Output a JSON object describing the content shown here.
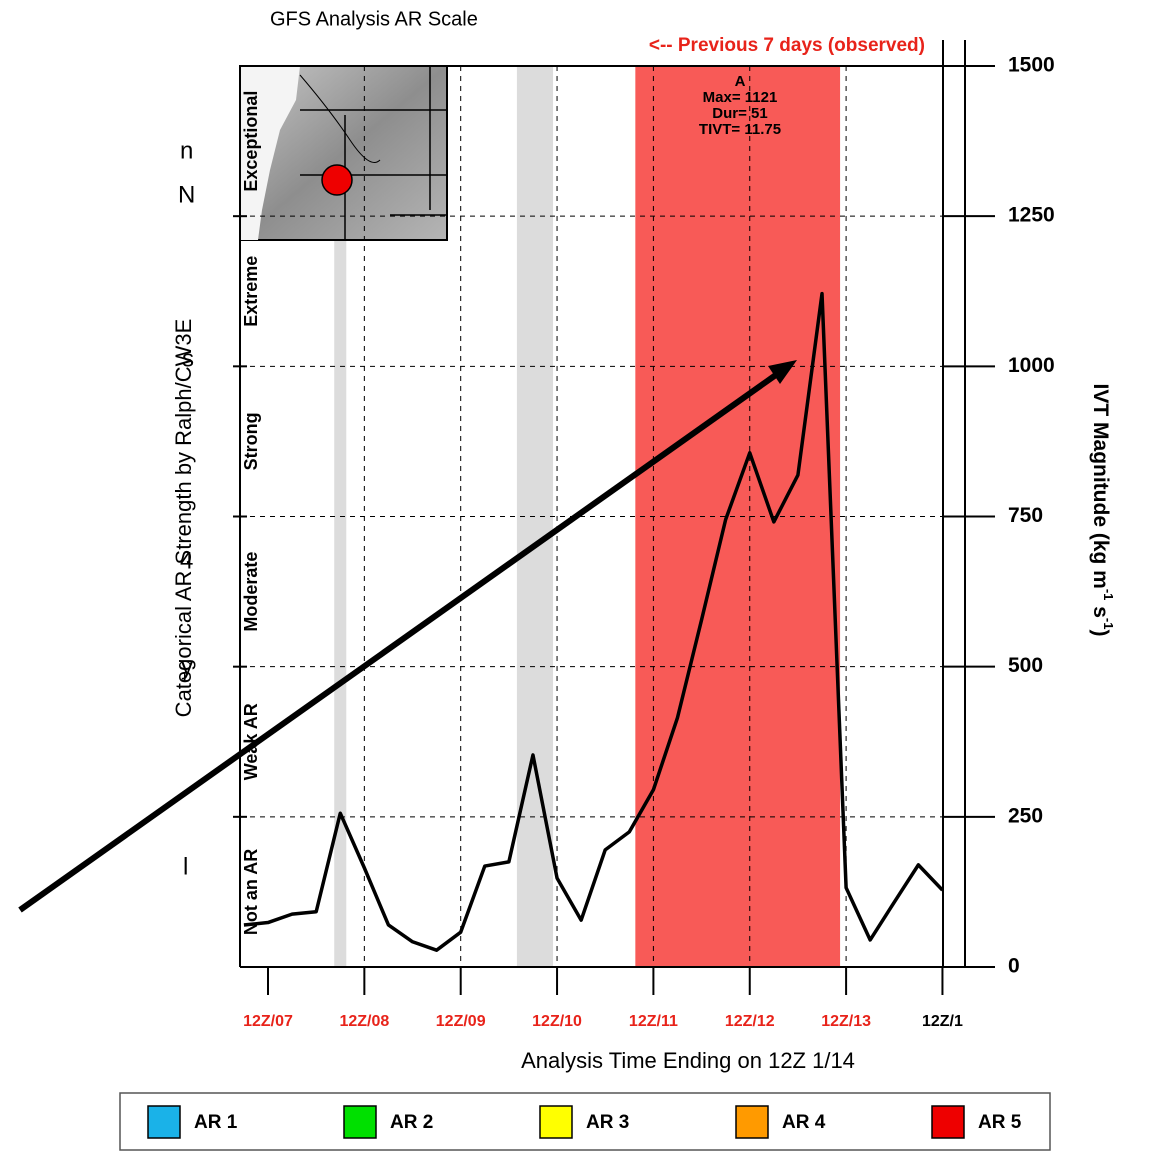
{
  "chart_data": {
    "type": "line",
    "title": "GFS Analysis AR Scale",
    "subtitle": "<-- Previous 7 days (observed)",
    "xlabel": "Analysis Time Ending on 12Z 1/14",
    "ylabel": "Categorical AR Strength by Ralph/CW3E",
    "y2label_parts": [
      "IVT Magnitude (kg m",
      "-1",
      " s",
      "-1",
      ")"
    ],
    "annotation": [
      "A",
      "Max= 1121",
      "Dur= 51",
      "TIVT= 11.75"
    ],
    "category_bands": [
      "Not an AR",
      "Weak AR",
      "Moderate",
      "Strong",
      "Extreme",
      "Exceptional"
    ],
    "x": [
      -6,
      0,
      6,
      12,
      18,
      24,
      30,
      36,
      42,
      48,
      54,
      60,
      66,
      72,
      78,
      84,
      90,
      96,
      102,
      108,
      114,
      120,
      126,
      132,
      138,
      144,
      150,
      156,
      162,
      168
    ],
    "series": [
      {
        "color": "#000000",
        "values": [
          70,
          74,
          88,
          92,
          256,
          165,
          70,
          42,
          28,
          58,
          168,
          175,
          353,
          148,
          78,
          195,
          225,
          295,
          415,
          578,
          745,
          856,
          741,
          819,
          1121,
          132,
          45,
          108,
          170,
          128
        ]
      }
    ],
    "xlim": [
      -7,
      168
    ],
    "xticks": [
      {
        "value": 0,
        "label": "12Z/07"
      },
      {
        "value": 24,
        "label": "12Z/08"
      },
      {
        "value": 48,
        "label": "12Z/09"
      },
      {
        "value": 72,
        "label": "12Z/10"
      },
      {
        "value": 96,
        "label": "12Z/11"
      },
      {
        "value": 120,
        "label": "12Z/12"
      },
      {
        "value": 144,
        "label": "12Z/13"
      },
      {
        "value": 168,
        "label": "12Z/1"
      }
    ],
    "xtick_label_colors": [
      "#e8231a",
      "#e8231a",
      "#e8231a",
      "#e8231a",
      "#e8231a",
      "#e8231a",
      "#e8231a",
      "#000000"
    ],
    "ylim": [
      0,
      1500
    ],
    "yticks": [
      0,
      250,
      500,
      750,
      1000,
      1250,
      1500
    ],
    "grid": true,
    "shaded_spans": [
      {
        "start": 16.5,
        "end": 19.5,
        "color": "#dcdcdc"
      },
      {
        "start": 62,
        "end": 71,
        "color": "#dcdcdc"
      },
      {
        "start": 91.5,
        "end": 142.5,
        "color": "#f85a57"
      }
    ],
    "legend": [
      {
        "name": "AR 1",
        "color": "#1ab2e8"
      },
      {
        "name": "AR 2",
        "color": "#00e000"
      },
      {
        "name": "AR 3",
        "color": "#ffff00"
      },
      {
        "name": "AR 4",
        "color": "#ff9a00"
      },
      {
        "name": "AR 5",
        "color": "#ee0000"
      }
    ]
  },
  "background_fragments": [
    "n",
    "N",
    "s",
    "4",
    "y",
    "l"
  ]
}
